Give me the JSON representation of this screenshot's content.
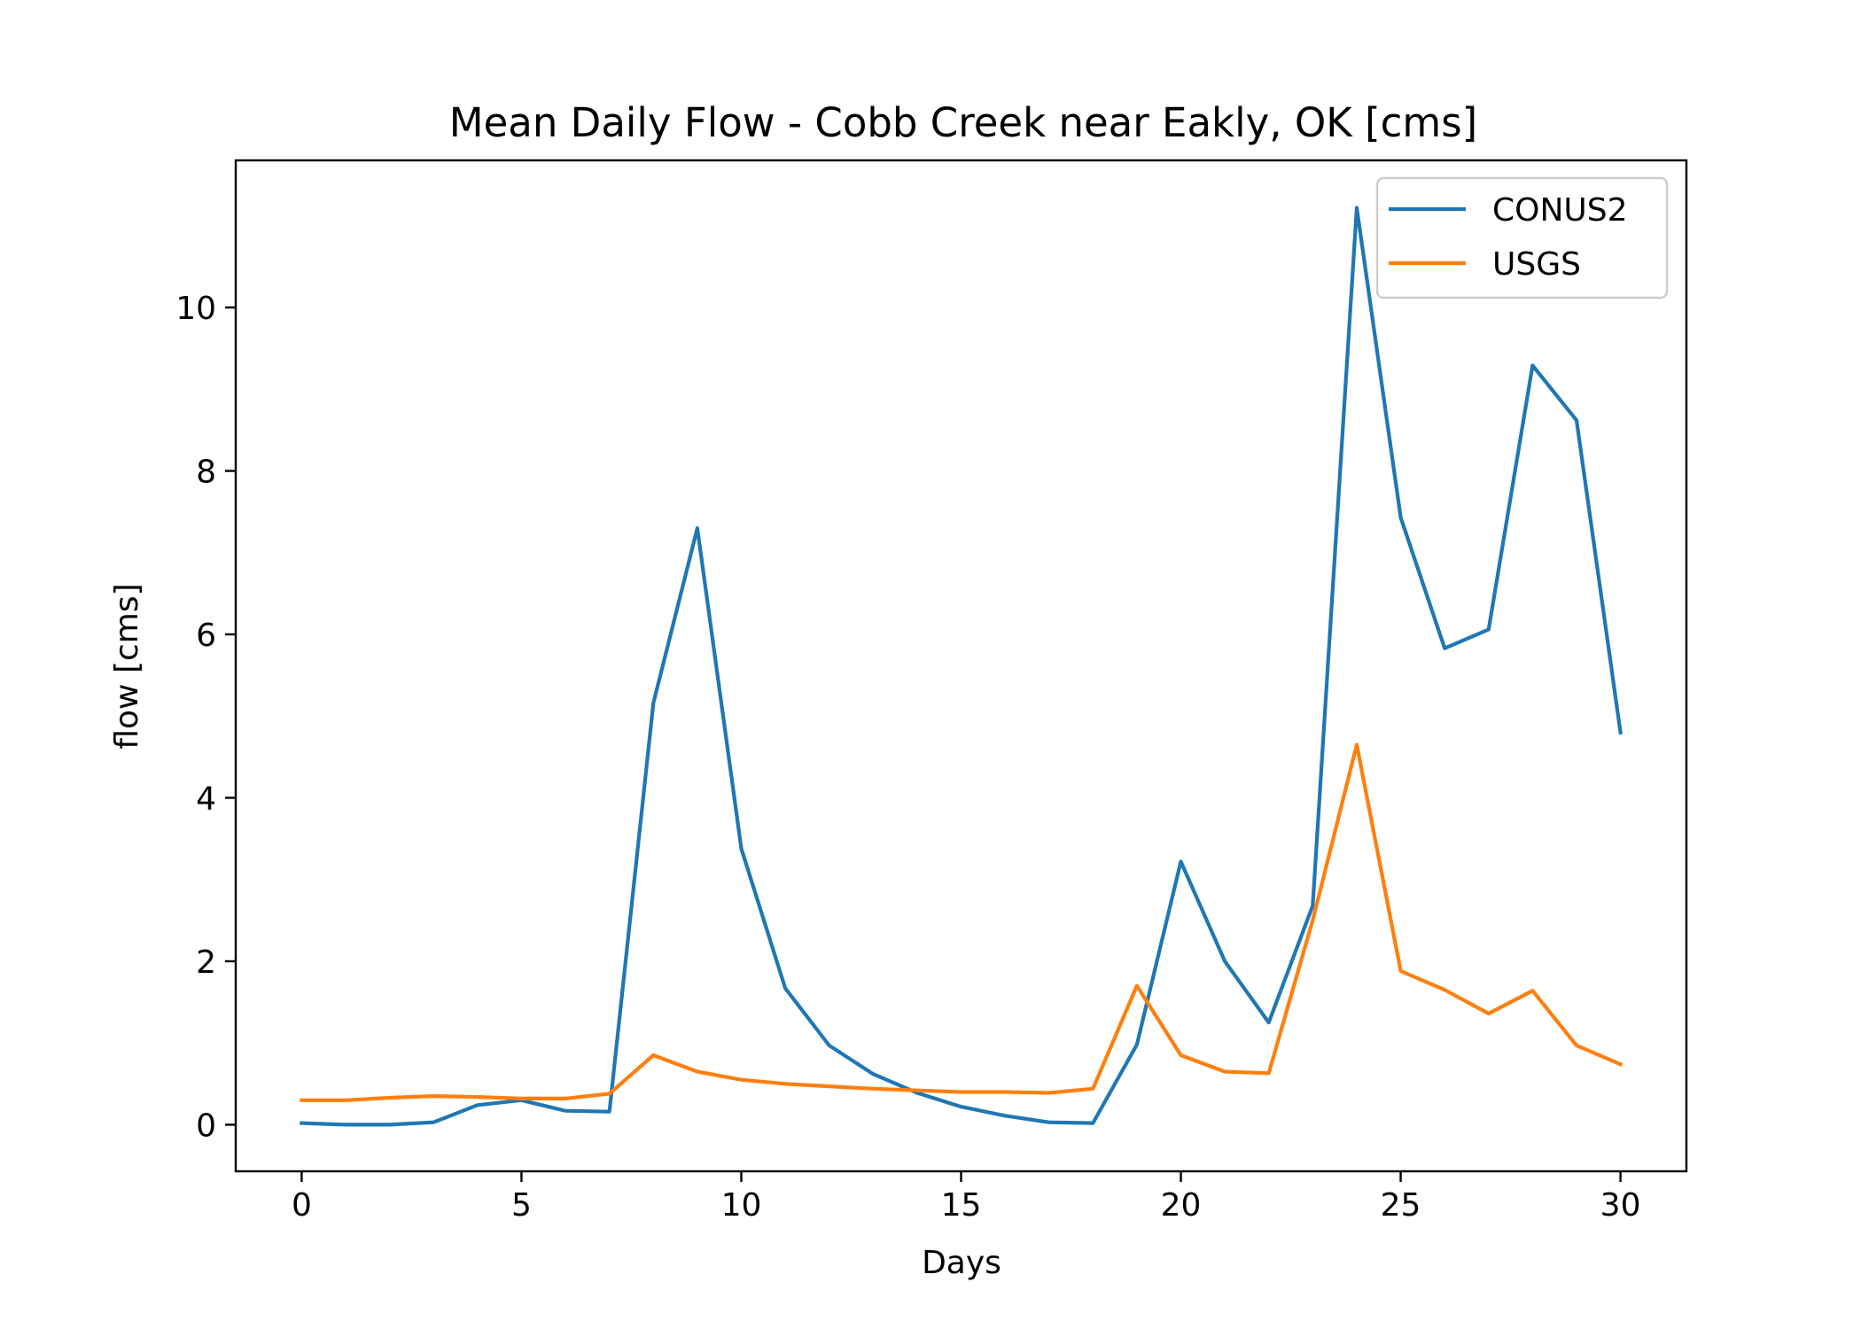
{
  "chart_data": {
    "type": "line",
    "title": "Mean Daily Flow - Cobb Creek near Eakly, OK [cms]",
    "xlabel": "Days",
    "ylabel": "flow [cms]",
    "xlim": [
      -1.5,
      31.5
    ],
    "ylim": [
      -0.57,
      11.8
    ],
    "xticks": [
      0,
      5,
      10,
      15,
      20,
      25,
      30
    ],
    "yticks": [
      0,
      2,
      4,
      6,
      8,
      10
    ],
    "grid": false,
    "legend_position": "upper right",
    "x": [
      0,
      1,
      2,
      3,
      4,
      5,
      6,
      7,
      8,
      9,
      10,
      11,
      12,
      13,
      14,
      15,
      16,
      17,
      18,
      19,
      20,
      21,
      22,
      23,
      24,
      25,
      26,
      27,
      28,
      29,
      30
    ],
    "series": [
      {
        "name": "CONUS2",
        "color": "#1f77b4",
        "values": [
          0.02,
          0.0,
          0.0,
          0.03,
          0.24,
          0.3,
          0.17,
          0.16,
          5.16,
          7.3,
          3.38,
          1.67,
          0.97,
          0.62,
          0.39,
          0.22,
          0.11,
          0.03,
          0.02,
          0.98,
          3.22,
          2.0,
          1.25,
          2.68,
          11.22,
          7.43,
          5.83,
          6.06,
          9.29,
          8.62,
          4.8
        ]
      },
      {
        "name": "USGS",
        "color": "#ff7f0e",
        "values": [
          0.3,
          0.3,
          0.33,
          0.35,
          0.34,
          0.32,
          0.32,
          0.38,
          0.85,
          0.65,
          0.55,
          0.5,
          0.47,
          0.44,
          0.42,
          0.4,
          0.4,
          0.39,
          0.44,
          1.7,
          0.85,
          0.65,
          0.63,
          2.5,
          4.65,
          1.88,
          1.65,
          1.36,
          1.64,
          0.97,
          0.74
        ]
      }
    ]
  }
}
